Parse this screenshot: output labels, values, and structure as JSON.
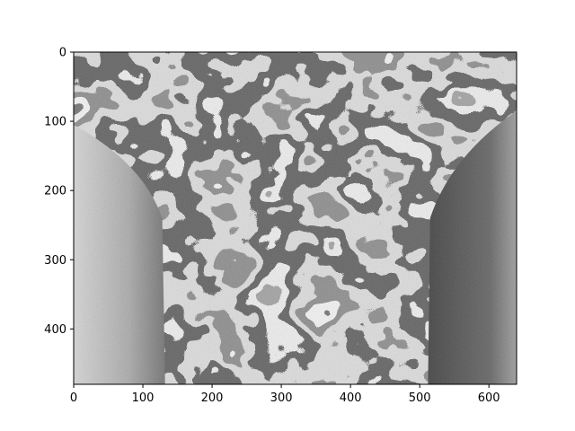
{
  "chart_data": {
    "type": "heatmap",
    "colormap": "gray",
    "image_shape": [
      480,
      640
    ],
    "xlim": [
      0,
      640
    ],
    "ylim": [
      480,
      0
    ],
    "x_ticks": [
      0,
      100,
      200,
      300,
      400,
      500,
      600
    ],
    "y_ticks": [
      0,
      100,
      200,
      300,
      400
    ],
    "x_tick_labels": [
      "0",
      "100",
      "200",
      "300",
      "400",
      "500",
      "600"
    ],
    "y_tick_labels": [
      "0",
      "100",
      "200",
      "300",
      "400"
    ],
    "title": "",
    "xlabel": "",
    "ylabel": "",
    "grid": false
  }
}
